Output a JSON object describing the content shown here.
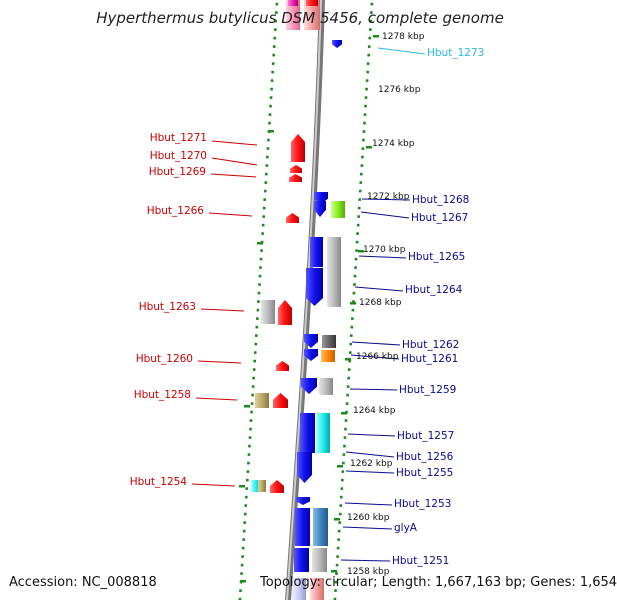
{
  "title": "Hyperthermus butylicus DSM 5456, complete genome",
  "accession_label": "Accession: NC_008818",
  "topology_label": "Topology: circular; Length: 1,667,163 bp; Genes: 1,654",
  "colors": {
    "left_label": "#cc0000",
    "right_label": "#0a0a8c",
    "right_label_cyan": "#2bb7e6",
    "ruler_dots": "#1a8a1a",
    "backbone": "#888888"
  },
  "kbp_ticks": [
    "1278 kbp",
    "1276 kbp",
    "1274 kbp",
    "1272 kbp",
    "1270 kbp",
    "1268 kbp",
    "1266 kbp",
    "1264 kbp",
    "1262 kbp",
    "1260 kbp",
    "1258 kbp"
  ],
  "left_labels": [
    "Hbut_1271",
    "Hbut_1270",
    "Hbut_1269",
    "Hbut_1266",
    "Hbut_1263",
    "Hbut_1260",
    "Hbut_1258",
    "Hbut_1254"
  ],
  "right_labels": [
    "Hbut_1273",
    "Hbut_1268",
    "Hbut_1267",
    "Hbut_1265",
    "Hbut_1264",
    "Hbut_1262",
    "Hbut_1261",
    "Hbut_1259",
    "Hbut_1257",
    "Hbut_1256",
    "Hbut_1255",
    "Hbut_1253",
    "glyA",
    "Hbut_1251"
  ]
}
